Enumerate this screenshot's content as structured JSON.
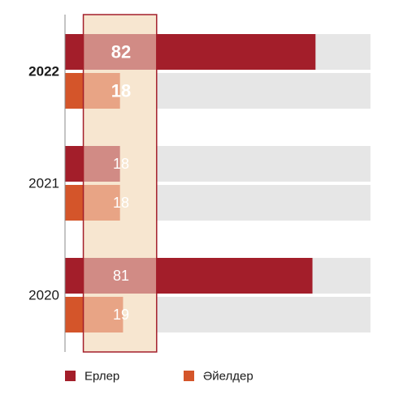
{
  "chart_data": {
    "type": "bar",
    "orientation": "horizontal",
    "categories": [
      "2022",
      "2021",
      "2020"
    ],
    "series": [
      {
        "name": "Ерлер",
        "values": [
          82,
          18,
          81
        ],
        "color": "#a31e2a"
      },
      {
        "name": "Әйелдер",
        "values": [
          18,
          18,
          19
        ],
        "color": "#d4552a"
      }
    ],
    "xlim": [
      0,
      100
    ],
    "background_bar_color": "#e6e6e6",
    "highlight_band": {
      "range": [
        6,
        30
      ],
      "fill": "#f7e6d0",
      "stroke": "#a31e2a"
    },
    "legend_position": "bottom",
    "emphasized_category": "2022"
  }
}
